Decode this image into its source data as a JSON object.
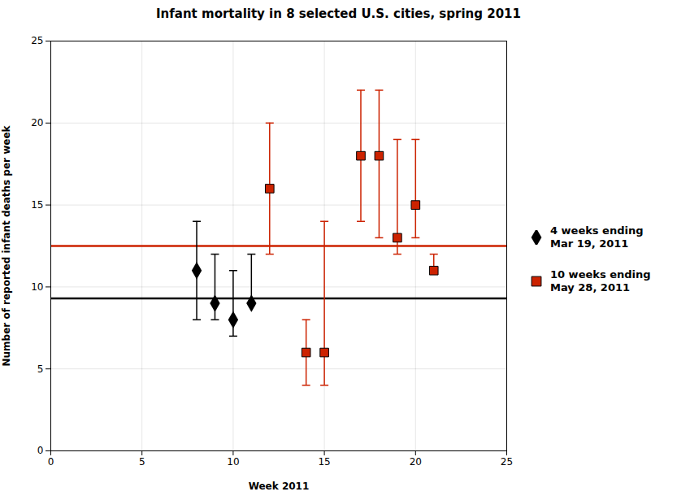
{
  "chart_data": {
    "type": "scatter",
    "title": "Infant mortality in 8 selected U.S. cities, spring 2011",
    "xlabel": "Week 2011",
    "ylabel": "Number of reported infant deaths per week",
    "xlim": [
      0,
      25
    ],
    "ylim": [
      0,
      25
    ],
    "xticks": [
      0,
      5,
      10,
      15,
      20,
      25
    ],
    "yticks": [
      0,
      5,
      10,
      15,
      20,
      25
    ],
    "grid": true,
    "legend": "right",
    "hlines": [
      {
        "value": 9.3,
        "color": "#000000"
      },
      {
        "value": 12.5,
        "color": "#cc2200"
      }
    ],
    "series": [
      {
        "name": "4 weeks ending\nMar 19, 2011",
        "color": "#000000",
        "marker": "diamond",
        "x": [
          8,
          9,
          10,
          11
        ],
        "values": [
          11,
          9,
          8,
          9
        ],
        "yerr_lo": [
          3,
          1,
          1,
          0
        ],
        "yerr_hi": [
          3,
          3,
          3,
          3
        ]
      },
      {
        "name": "10 weeks ending\nMay 28, 2011",
        "color": "#cc2200",
        "marker": "square",
        "x": [
          12,
          14,
          15,
          17,
          18,
          19,
          20,
          21
        ],
        "values": [
          16,
          6,
          6,
          18,
          18,
          13,
          15,
          11
        ],
        "yerr_lo": [
          4,
          2,
          2,
          4,
          5,
          1,
          2,
          0
        ],
        "yerr_hi": [
          4,
          2,
          8,
          4,
          4,
          6,
          4,
          1
        ]
      }
    ]
  }
}
